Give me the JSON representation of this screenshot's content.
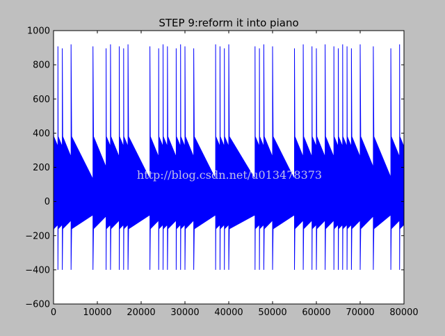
{
  "chart_data": {
    "type": "line",
    "title": "STEP 9:reform it into piano",
    "xlabel": "",
    "ylabel": "",
    "xlim": [
      0,
      80000
    ],
    "ylim": [
      -600,
      1000
    ],
    "xticks": [
      "0",
      "10000",
      "20000",
      "30000",
      "40000",
      "50000",
      "60000",
      "70000",
      "80000"
    ],
    "xtick_values": [
      0,
      10000,
      20000,
      30000,
      40000,
      50000,
      60000,
      70000,
      80000
    ],
    "yticks": [
      "1000",
      "800",
      "600",
      "400",
      "200",
      "0",
      "−200",
      "−400",
      "−600"
    ],
    "ytick_values": [
      1000,
      800,
      600,
      400,
      200,
      0,
      -200,
      -400,
      -600
    ],
    "grid": false,
    "series": [
      {
        "name": "",
        "color": "#0000ff",
        "note_onsets": [
          0,
          1000,
          2000,
          4000,
          9000,
          12000,
          13000,
          15000,
          16000,
          17000,
          22000,
          24000,
          25000,
          26000,
          28000,
          29000,
          30000,
          32000,
          37000,
          38000,
          39000,
          40000,
          46000,
          47000,
          48000,
          50000,
          55000,
          57000,
          59000,
          60000,
          62000,
          64000,
          65000,
          66000,
          67000,
          68000,
          70000,
          73000,
          77000,
          79000,
          80000
        ],
        "peak_max": 920,
        "peak_min": -400,
        "sustain_level": 130
      }
    ]
  },
  "watermark": "http://blog.csdn.net/u013478373",
  "colors": {
    "figure_bg": "#bfbfbf",
    "axes_bg": "#ffffff",
    "line": "#0000ff"
  }
}
